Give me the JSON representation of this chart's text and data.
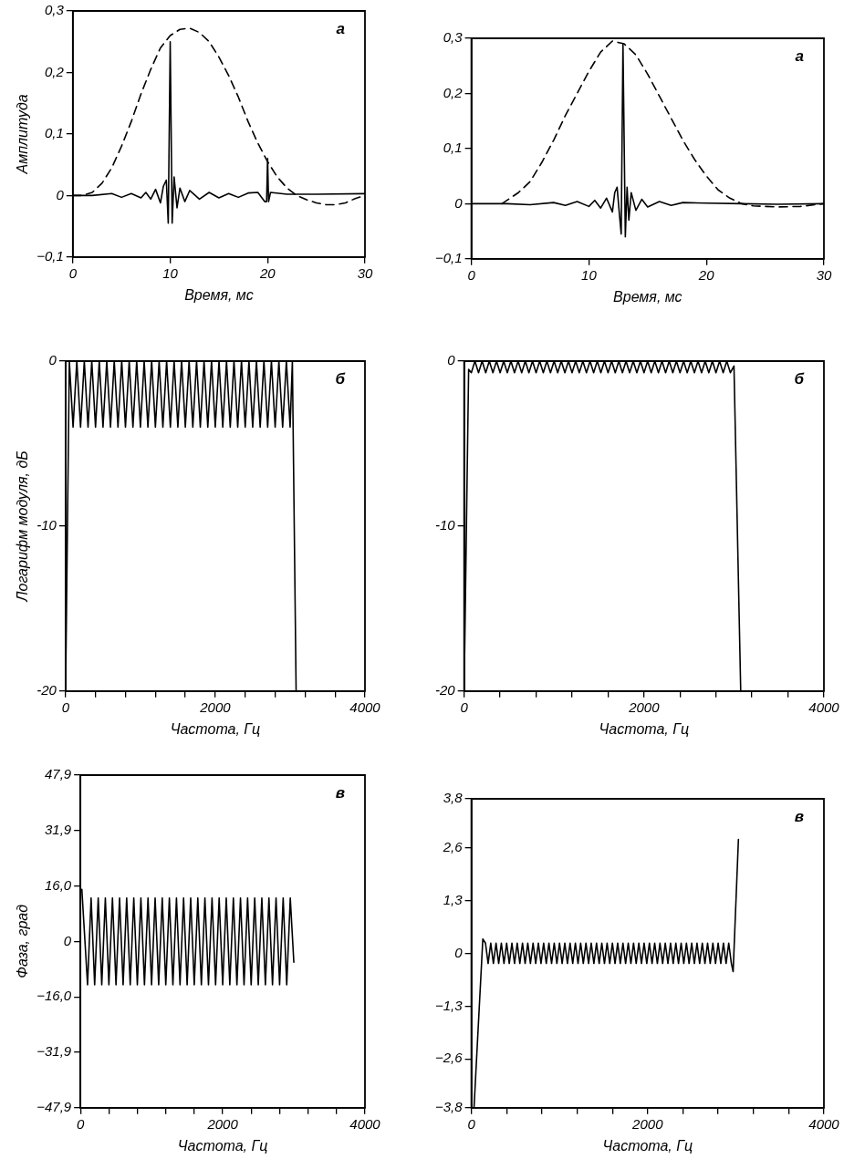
{
  "chart_data": [
    {
      "type": "line",
      "xlabel": "Время, мс",
      "ylabel": "Амплитуда",
      "annotations": [
        "а"
      ],
      "marker": "none",
      "xlim": [
        0,
        30
      ],
      "xticks": [
        0,
        10,
        20,
        30
      ],
      "ylim": [
        -0.1,
        0.3
      ],
      "yticks": [
        {
          "value": -0.1,
          "label": "−0,1"
        },
        0,
        {
          "value": 0.1,
          "label": "0,1"
        },
        {
          "value": 0.2,
          "label": "0,2"
        },
        {
          "value": 0.3,
          "label": "0,3"
        }
      ],
      "series": [
        {
          "color": "#000000",
          "line_style": "dashed",
          "x": [
            0,
            1,
            2,
            3,
            4,
            5,
            6,
            7,
            8,
            9,
            10,
            11,
            12,
            13,
            14,
            15,
            16,
            17,
            18,
            19,
            20,
            21,
            22,
            23,
            24,
            25,
            26,
            27,
            28,
            29,
            30
          ],
          "values": [
            0,
            0,
            0.005,
            0.02,
            0.045,
            0.08,
            0.12,
            0.165,
            0.205,
            0.24,
            0.26,
            0.27,
            0.272,
            0.265,
            0.25,
            0.225,
            0.195,
            0.16,
            0.12,
            0.085,
            0.055,
            0.03,
            0.012,
            0,
            -0.007,
            -0.012,
            -0.015,
            -0.015,
            -0.012,
            -0.005,
            0
          ]
        },
        {
          "color": "#000000",
          "line_style": "solid",
          "x": [
            0,
            2,
            4,
            5,
            6,
            7,
            7.5,
            8,
            8.5,
            9,
            9.3,
            9.6,
            9.8,
            10,
            10.2,
            10.4,
            10.7,
            11,
            11.5,
            12,
            13,
            14,
            15,
            16,
            17,
            18,
            19,
            19.7,
            19.9,
            20,
            20.1,
            20.3,
            22,
            25,
            30
          ],
          "values": [
            0,
            0,
            0.003,
            -0.003,
            0.003,
            -0.004,
            0.005,
            -0.006,
            0.01,
            -0.012,
            0.015,
            0.025,
            -0.045,
            0.25,
            -0.045,
            0.03,
            -0.02,
            0.012,
            -0.01,
            0.008,
            -0.006,
            0.005,
            -0.004,
            0.003,
            -0.003,
            0.004,
            0.005,
            -0.01,
            -0.01,
            0.06,
            -0.01,
            0.005,
            0.002,
            0.002,
            0.003
          ]
        }
      ]
    },
    {
      "type": "line",
      "xlabel": "Время, мс",
      "annotations": [
        "а"
      ],
      "marker": "none",
      "xlim": [
        0,
        30
      ],
      "xticks": [
        0,
        10,
        20,
        30
      ],
      "ylim": [
        -0.1,
        0.3
      ],
      "yticks": [
        {
          "value": -0.1,
          "label": "−0,1"
        },
        0,
        {
          "value": 0.1,
          "label": "0,1"
        },
        {
          "value": 0.2,
          "label": "0,2"
        },
        {
          "value": 0.3,
          "label": "0,3"
        }
      ],
      "series": [
        {
          "color": "#000000",
          "line_style": "dashed",
          "x": [
            2.6,
            4,
            5,
            6,
            7,
            8,
            9,
            10,
            11,
            12,
            13,
            14,
            15,
            16,
            17,
            18,
            19,
            20,
            21,
            22,
            23,
            24,
            26,
            28,
            30
          ],
          "values": [
            0,
            0.02,
            0.04,
            0.075,
            0.115,
            0.16,
            0.2,
            0.24,
            0.275,
            0.295,
            0.29,
            0.27,
            0.235,
            0.195,
            0.155,
            0.115,
            0.08,
            0.05,
            0.025,
            0.01,
            0,
            -0.004,
            -0.006,
            -0.005,
            0
          ]
        },
        {
          "color": "#000000",
          "line_style": "solid",
          "x": [
            0,
            3,
            5,
            7,
            8,
            9,
            10,
            10.5,
            11,
            11.5,
            12,
            12.2,
            12.4,
            12.6,
            12.75,
            12.9,
            13.1,
            13.25,
            13.4,
            13.6,
            14,
            14.5,
            15,
            16,
            17,
            18,
            20,
            23,
            26,
            30
          ],
          "values": [
            0,
            0,
            -0.002,
            0.002,
            -0.003,
            0.004,
            -0.005,
            0.006,
            -0.008,
            0.01,
            -0.015,
            0.02,
            0.03,
            -0.02,
            -0.055,
            0.29,
            -0.06,
            0.03,
            -0.03,
            0.02,
            -0.012,
            0.008,
            -0.006,
            0.004,
            -0.003,
            0.002,
            0.001,
            0,
            -0.001,
            0
          ]
        }
      ]
    },
    {
      "type": "line",
      "xlabel": "Частота, Гц",
      "ylabel": "Логарифм модуля, дБ",
      "annotations": [
        "б"
      ],
      "marker": "none",
      "xlim": [
        0,
        4000
      ],
      "xticks": [
        0,
        {
          "value": 400,
          "label": null
        },
        {
          "value": 800,
          "label": null
        },
        {
          "value": 1200,
          "label": null
        },
        {
          "value": 1600,
          "label": null
        },
        2000,
        {
          "value": 2400,
          "label": null
        },
        {
          "value": 2800,
          "label": null
        },
        {
          "value": 3200,
          "label": null
        },
        {
          "value": 3600,
          "label": null
        },
        4000
      ],
      "ylim": [
        -20,
        0
      ],
      "yticks": [
        -20,
        -10,
        0
      ],
      "series": [
        {
          "color": "#000000",
          "line_style": "solid",
          "x": [
            0,
            50,
            100,
            150,
            200,
            250,
            300,
            350,
            400,
            450,
            500,
            550,
            600,
            650,
            700,
            750,
            800,
            850,
            900,
            950,
            1000,
            1050,
            1100,
            1150,
            1200,
            1250,
            1300,
            1350,
            1400,
            1450,
            1500,
            1550,
            1600,
            1650,
            1700,
            1750,
            1800,
            1850,
            1900,
            1950,
            2000,
            2050,
            2100,
            2150,
            2200,
            2250,
            2300,
            2350,
            2400,
            2450,
            2500,
            2550,
            2600,
            2650,
            2700,
            2750,
            2800,
            2850,
            2900,
            2950,
            3000,
            3030,
            3080
          ],
          "values": [
            -20,
            0,
            -4,
            0,
            -4,
            0,
            -4,
            0,
            -4,
            0,
            -4,
            0,
            -4,
            0,
            -4,
            0,
            -4,
            0,
            -4,
            0,
            -4,
            0,
            -4,
            0,
            -4,
            0,
            -4,
            0,
            -4,
            0,
            -4,
            0,
            -4,
            0,
            -4,
            0,
            -4,
            0,
            -4,
            0,
            -4,
            0,
            -4,
            0,
            -4,
            0,
            -4,
            0,
            -4,
            0,
            -4,
            0,
            -4,
            0,
            -4,
            0,
            -4,
            0,
            -4,
            0,
            -4,
            0,
            -20
          ]
        }
      ]
    },
    {
      "type": "line",
      "xlabel": "Частота, Гц",
      "annotations": [
        "б"
      ],
      "marker": "none",
      "xlim": [
        0,
        4000
      ],
      "xticks": [
        0,
        {
          "value": 400,
          "label": null
        },
        {
          "value": 800,
          "label": null
        },
        {
          "value": 1200,
          "label": null
        },
        {
          "value": 1600,
          "label": null
        },
        2000,
        {
          "value": 2400,
          "label": null
        },
        {
          "value": 2800,
          "label": null
        },
        {
          "value": 3200,
          "label": null
        },
        {
          "value": 3600,
          "label": null
        },
        4000
      ],
      "ylim": [
        -20,
        0
      ],
      "yticks": [
        -20,
        -10,
        0
      ],
      "series": [
        {
          "color": "#000000",
          "line_style": "solid",
          "x": [
            0,
            50,
            80,
            120,
            160,
            200,
            240,
            280,
            320,
            360,
            400,
            440,
            480,
            520,
            560,
            600,
            640,
            680,
            720,
            760,
            800,
            840,
            880,
            920,
            960,
            1000,
            1040,
            1080,
            1120,
            1160,
            1200,
            1240,
            1280,
            1320,
            1360,
            1400,
            1440,
            1480,
            1520,
            1560,
            1600,
            1640,
            1680,
            1720,
            1760,
            1800,
            1840,
            1880,
            1920,
            1960,
            2000,
            2040,
            2080,
            2120,
            2160,
            2200,
            2240,
            2280,
            2320,
            2360,
            2400,
            2440,
            2480,
            2520,
            2560,
            2600,
            2640,
            2680,
            2720,
            2760,
            2800,
            2840,
            2880,
            2920,
            2960,
            3000,
            3075
          ],
          "values": [
            -20,
            -0.5,
            -0.7,
            0,
            -0.7,
            0,
            -0.7,
            0,
            -0.7,
            0,
            -0.7,
            0,
            -0.7,
            0,
            -0.7,
            0,
            -0.7,
            0,
            -0.7,
            0,
            -0.7,
            0,
            -0.7,
            0,
            -0.7,
            0,
            -0.7,
            0,
            -0.7,
            0,
            -0.7,
            0,
            -0.7,
            0,
            -0.7,
            0,
            -0.7,
            0,
            -0.7,
            0,
            -0.7,
            0,
            -0.7,
            0,
            -0.7,
            0,
            -0.7,
            0,
            -0.7,
            0,
            -0.7,
            0,
            -0.7,
            0,
            -0.7,
            0,
            -0.7,
            0,
            -0.7,
            0,
            -0.7,
            0,
            -0.7,
            0,
            -0.7,
            0,
            -0.7,
            0,
            -0.7,
            0,
            -0.7,
            0,
            -0.7,
            0,
            -0.7,
            -0.3,
            -20
          ]
        }
      ]
    },
    {
      "type": "line",
      "xlabel": "Частота, Гц",
      "ylabel": "Фаза, град",
      "annotations": [
        "в"
      ],
      "marker": "none",
      "xlim": [
        0,
        4000
      ],
      "xticks": [
        0,
        {
          "value": 400,
          "label": null
        },
        {
          "value": 800,
          "label": null
        },
        {
          "value": 1200,
          "label": null
        },
        {
          "value": 1600,
          "label": null
        },
        2000,
        {
          "value": 2400,
          "label": null
        },
        {
          "value": 2800,
          "label": null
        },
        {
          "value": 3200,
          "label": null
        },
        {
          "value": 3600,
          "label": null
        },
        4000
      ],
      "ylim": [
        -47.9,
        47.9
      ],
      "yticks": [
        {
          "value": -47.9,
          "label": "−47,9"
        },
        {
          "value": -31.9,
          "label": "−31,9"
        },
        {
          "value": -16,
          "label": "−16,0"
        },
        0,
        {
          "value": 16,
          "label": "16,0"
        },
        {
          "value": 31.9,
          "label": "31,9"
        },
        {
          "value": 47.9,
          "label": "47,9"
        }
      ],
      "series": [
        {
          "color": "#000000",
          "line_style": "solid",
          "x": [
            20,
            100,
            150,
            200,
            250,
            300,
            350,
            400,
            450,
            500,
            550,
            600,
            650,
            700,
            750,
            800,
            850,
            900,
            950,
            1000,
            1050,
            1100,
            1150,
            1200,
            1250,
            1300,
            1350,
            1400,
            1450,
            1500,
            1550,
            1600,
            1650,
            1700,
            1750,
            1800,
            1850,
            1900,
            1950,
            2000,
            2050,
            2100,
            2150,
            2200,
            2250,
            2300,
            2350,
            2400,
            2450,
            2500,
            2550,
            2600,
            2650,
            2700,
            2750,
            2800,
            2850,
            2900,
            2950,
            3000
          ],
          "values": [
            15,
            -12.5,
            12.5,
            -12.5,
            12.5,
            -12.5,
            12.5,
            -12.5,
            12.5,
            -12.5,
            12.5,
            -12.5,
            12.5,
            -12.5,
            12.5,
            -12.5,
            12.5,
            -12.5,
            12.5,
            -12.5,
            12.5,
            -12.5,
            12.5,
            -12.5,
            12.5,
            -12.5,
            12.5,
            -12.5,
            12.5,
            -12.5,
            12.5,
            -12.5,
            12.5,
            -12.5,
            12.5,
            -12.5,
            12.5,
            -12.5,
            12.5,
            -12.5,
            12.5,
            -12.5,
            12.5,
            -12.5,
            12.5,
            -12.5,
            12.5,
            -12.5,
            12.5,
            -12.5,
            12.5,
            -12.5,
            12.5,
            -12.5,
            12.5,
            -12.5,
            12.5,
            -12.5,
            12.5,
            -6
          ]
        }
      ]
    },
    {
      "type": "line",
      "xlabel": "Частота, Гц",
      "annotations": [
        "в"
      ],
      "marker": "none",
      "xlim": [
        0,
        4000
      ],
      "xticks": [
        0,
        {
          "value": 400,
          "label": null
        },
        {
          "value": 800,
          "label": null
        },
        {
          "value": 1200,
          "label": null
        },
        {
          "value": 1600,
          "label": null
        },
        2000,
        {
          "value": 2400,
          "label": null
        },
        {
          "value": 2800,
          "label": null
        },
        {
          "value": 3200,
          "label": null
        },
        {
          "value": 3600,
          "label": null
        },
        4000
      ],
      "ylim": [
        -3.8,
        3.8
      ],
      "yticks": [
        {
          "value": -3.8,
          "label": "−3,8"
        },
        {
          "value": -2.6,
          "label": "−2,6"
        },
        {
          "value": -1.3,
          "label": "−1,3"
        },
        0,
        {
          "value": 1.3,
          "label": "1,3"
        },
        {
          "value": 2.6,
          "label": "2,6"
        },
        {
          "value": 3.8,
          "label": "3,8"
        }
      ],
      "series": [
        {
          "color": "#000000",
          "line_style": "solid",
          "x": [
            30,
            130,
            160,
            190,
            220,
            250,
            280,
            310,
            340,
            370,
            400,
            430,
            460,
            490,
            520,
            550,
            580,
            610,
            640,
            670,
            700,
            730,
            760,
            790,
            820,
            850,
            880,
            910,
            940,
            970,
            1000,
            1030,
            1060,
            1090,
            1120,
            1150,
            1180,
            1210,
            1240,
            1270,
            1300,
            1330,
            1360,
            1390,
            1420,
            1450,
            1480,
            1510,
            1540,
            1570,
            1600,
            1630,
            1660,
            1690,
            1720,
            1750,
            1780,
            1810,
            1840,
            1870,
            1900,
            1930,
            1960,
            1990,
            2020,
            2050,
            2080,
            2110,
            2140,
            2170,
            2200,
            2230,
            2260,
            2290,
            2320,
            2350,
            2380,
            2410,
            2440,
            2470,
            2500,
            2530,
            2560,
            2590,
            2620,
            2650,
            2680,
            2710,
            2740,
            2770,
            2800,
            2830,
            2860,
            2890,
            2920,
            2950,
            2970,
            3030
          ],
          "values": [
            -3.8,
            0.35,
            0.25,
            -0.25,
            0.25,
            -0.25,
            0.25,
            -0.25,
            0.25,
            -0.25,
            0.25,
            -0.25,
            0.25,
            -0.25,
            0.25,
            -0.25,
            0.25,
            -0.25,
            0.25,
            -0.25,
            0.25,
            -0.25,
            0.25,
            -0.25,
            0.25,
            -0.25,
            0.25,
            -0.25,
            0.25,
            -0.25,
            0.25,
            -0.25,
            0.25,
            -0.25,
            0.25,
            -0.25,
            0.25,
            -0.25,
            0.25,
            -0.25,
            0.25,
            -0.25,
            0.25,
            -0.25,
            0.25,
            -0.25,
            0.25,
            -0.25,
            0.25,
            -0.25,
            0.25,
            -0.25,
            0.25,
            -0.25,
            0.25,
            -0.25,
            0.25,
            -0.25,
            0.25,
            -0.25,
            0.25,
            -0.25,
            0.25,
            -0.25,
            0.25,
            -0.25,
            0.25,
            -0.25,
            0.25,
            -0.25,
            0.25,
            -0.25,
            0.25,
            -0.25,
            0.25,
            -0.25,
            0.25,
            -0.25,
            0.25,
            -0.25,
            0.25,
            -0.25,
            0.25,
            -0.25,
            0.25,
            -0.25,
            0.25,
            -0.25,
            0.25,
            -0.25,
            0.25,
            -0.25,
            0.25,
            -0.25,
            0.25,
            -0.25,
            -0.45,
            2.8
          ]
        }
      ]
    }
  ]
}
